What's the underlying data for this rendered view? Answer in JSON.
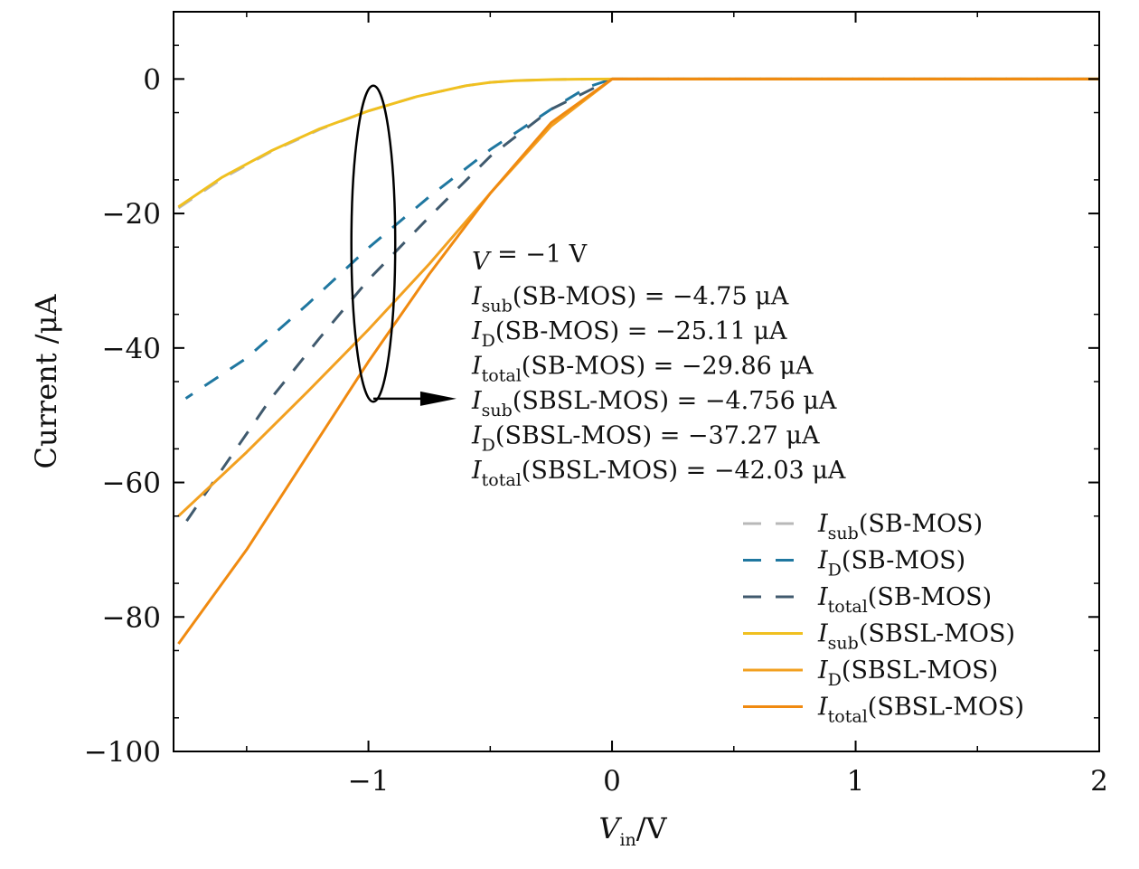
{
  "chart_data": {
    "type": "line",
    "title": "",
    "xlabel": {
      "main": "V",
      "sub": "in",
      "unit": "/V"
    },
    "ylabel": "Current /μA",
    "xlim": [
      -1.8,
      2.0
    ],
    "ylim": [
      -100,
      10
    ],
    "xticks": [
      -1,
      0,
      1,
      2
    ],
    "xtick_labels": [
      "−1",
      "0",
      "1",
      "2"
    ],
    "yticks": [
      0,
      -20,
      -40,
      -60,
      -80,
      -100
    ],
    "ytick_labels": [
      "0",
      "−20",
      "−40",
      "−60",
      "−80",
      "−100"
    ],
    "grid": false,
    "legend_position": "bottom-right",
    "series": [
      {
        "name": "Isub(SB-MOS)",
        "label_main": "I",
        "label_sub": "sub",
        "label_rest": "(SB-MOS)",
        "color": "#b8b8b8",
        "style": "dashed",
        "x": [
          -1.78,
          -1.6,
          -1.4,
          -1.2,
          -1.0,
          -0.8,
          -0.6,
          -0.5,
          -0.4,
          -0.25,
          -0.1,
          0.0,
          1.0,
          2.0
        ],
        "y": [
          -19.2,
          -14.8,
          -10.8,
          -7.5,
          -4.75,
          -2.6,
          -1.0,
          -0.5,
          -0.25,
          -0.08,
          -0.02,
          0,
          0,
          0
        ]
      },
      {
        "name": "ID(SB-MOS)",
        "label_main": "I",
        "label_sub": "D",
        "label_rest": "(SB-MOS)",
        "color": "#1f77a0",
        "style": "dashed",
        "x": [
          -1.75,
          -1.5,
          -1.25,
          -1.0,
          -0.75,
          -0.5,
          -0.25,
          -0.1,
          0.0,
          1.0,
          2.0
        ],
        "y": [
          -47.5,
          -41.5,
          -33.5,
          -25.11,
          -17.5,
          -10.5,
          -4.5,
          -1.2,
          0,
          0,
          0
        ]
      },
      {
        "name": "Itotal(SB-MOS)",
        "label_main": "I",
        "label_sub": "total",
        "label_rest": "(SB-MOS)",
        "color": "#405a6e",
        "style": "dashed",
        "x": [
          -1.78,
          -1.6,
          -1.4,
          -1.2,
          -1.0,
          -0.75,
          -0.5,
          -0.25,
          0.0,
          1.0,
          2.0
        ],
        "y": [
          -67.5,
          -58.0,
          -47.5,
          -38.5,
          -29.86,
          -20.5,
          -11.5,
          -4.5,
          0,
          0,
          0
        ]
      },
      {
        "name": "Isub(SBSL-MOS)",
        "label_main": "I",
        "label_sub": "sub",
        "label_rest": "(SBSL-MOS)",
        "color": "#f0c020",
        "style": "solid",
        "x": [
          -1.78,
          -1.6,
          -1.4,
          -1.2,
          -1.0,
          -0.8,
          -0.6,
          -0.5,
          -0.4,
          -0.25,
          -0.1,
          0.0,
          1.0,
          2.0
        ],
        "y": [
          -19.0,
          -14.6,
          -10.7,
          -7.4,
          -4.756,
          -2.6,
          -1.0,
          -0.5,
          -0.25,
          -0.08,
          -0.02,
          0,
          0,
          0
        ]
      },
      {
        "name": "ID(SBSL-MOS)",
        "label_main": "I",
        "label_sub": "D",
        "label_rest": "(SBSL-MOS)",
        "color": "#f2a020",
        "style": "solid",
        "x": [
          -1.78,
          -1.5,
          -1.25,
          -1.0,
          -0.75,
          -0.5,
          -0.25,
          0.0,
          1.0,
          2.0
        ],
        "y": [
          -65.0,
          -55.5,
          -46.5,
          -37.27,
          -27.5,
          -17.0,
          -7.0,
          0,
          0,
          0
        ]
      },
      {
        "name": "Itotal(SBSL-MOS)",
        "label_main": "I",
        "label_sub": "total",
        "label_rest": "(SBSL-MOS)",
        "color": "#f08a10",
        "style": "solid",
        "x": [
          -1.78,
          -1.5,
          -1.25,
          -1.0,
          -0.75,
          -0.5,
          -0.25,
          0.0,
          1.0,
          2.0
        ],
        "y": [
          -84.0,
          -70.0,
          -56.0,
          -42.03,
          -29.0,
          -17.0,
          -6.5,
          0,
          0,
          0
        ]
      }
    ],
    "annotation": {
      "lines": [
        {
          "main": "V",
          "sub": "",
          "rest": " = −1 V"
        },
        {
          "main": "I",
          "sub": "sub",
          "rest": "(SB-MOS) = −4.75 μA"
        },
        {
          "main": "I",
          "sub": "D",
          "rest": "(SB-MOS) = −25.11 μA"
        },
        {
          "main": "I",
          "sub": "total",
          "rest": "(SB-MOS) = −29.86 μA"
        },
        {
          "main": "I",
          "sub": "sub",
          "rest": "(SBSL-MOS) = −4.756 μA"
        },
        {
          "main": "I",
          "sub": "D",
          "rest": "(SBSL-MOS) = −37.27 μA"
        },
        {
          "main": "I",
          "sub": "total",
          "rest": "(SBSL-MOS) = −42.03 μA"
        }
      ],
      "ellipse_center": [
        -0.98,
        -24.5
      ],
      "ellipse_rx_v": 0.1,
      "ellipse_ry_ua": 23.5
    }
  }
}
